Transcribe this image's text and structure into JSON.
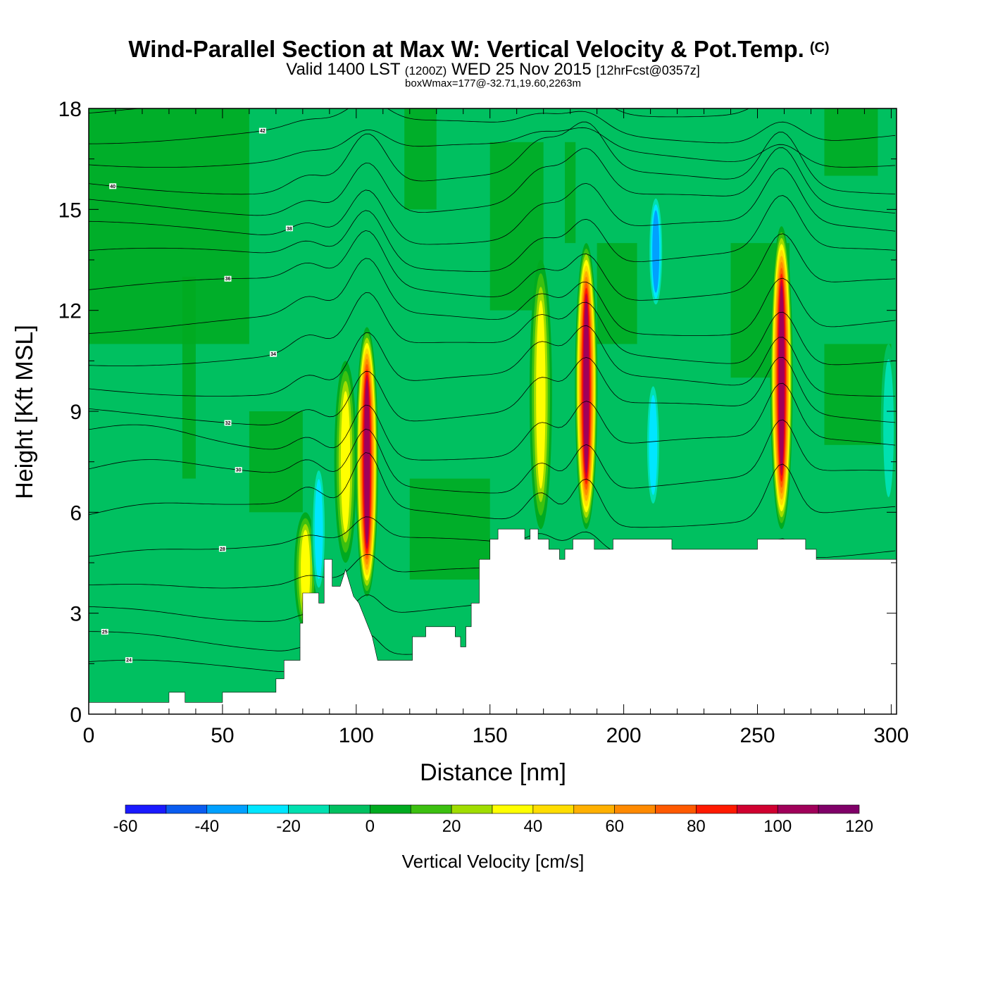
{
  "chart_data": {
    "type": "heatmap",
    "title": "Wind-Parallel Section at Max W: Vertical Velocity & Pot.Temp.",
    "title_mark": "(C)",
    "subtitle_valid": "Valid 1400 LST",
    "subtitle_utc": "(1200Z)",
    "subtitle_date": "WED 25 Nov 2015",
    "subtitle_fcst": "[12hrFcst@0357z]",
    "subtitle_box": "boxWmax=177@-32.71,19.60,2263m",
    "xlabel": "Distance [nm]",
    "ylabel": "Height [Kft MSL]",
    "xlim": [
      0,
      302
    ],
    "ylim": [
      0,
      18
    ],
    "x_ticks": [
      0,
      50,
      100,
      150,
      200,
      250,
      300
    ],
    "y_ticks": [
      0,
      3,
      6,
      9,
      12,
      15,
      18
    ],
    "colorbar": {
      "label": "Vertical Velocity [cm/s]",
      "ticks": [
        -60,
        -40,
        -20,
        0,
        20,
        40,
        60,
        80,
        100,
        120
      ],
      "bounds": [
        -60,
        120
      ],
      "step": 10,
      "colors": [
        "#1a1aff",
        "#0a5cf0",
        "#00a0ff",
        "#00e6ff",
        "#00e0b0",
        "#00c060",
        "#00aa20",
        "#3cc010",
        "#a0dd00",
        "#ffff00",
        "#ffdd00",
        "#ffb000",
        "#ff8a00",
        "#ff5a00",
        "#ff1a00",
        "#d00030",
        "#a0005a",
        "#800068"
      ]
    },
    "updraft_cores": [
      {
        "x": 104,
        "peak_cm_s": 105,
        "base_kft": 3.5,
        "top_kft": 11.5
      },
      {
        "x": 96,
        "peak_cm_s": 40,
        "base_kft": 4.5,
        "top_kft": 10.5
      },
      {
        "x": 81,
        "peak_cm_s": 35,
        "base_kft": 2.5,
        "top_kft": 6.0
      },
      {
        "x": 169,
        "peak_cm_s": 40,
        "base_kft": 5.5,
        "top_kft": 13.5
      },
      {
        "x": 186,
        "peak_cm_s": 105,
        "base_kft": 5.5,
        "top_kft": 14.0
      },
      {
        "x": 259,
        "peak_cm_s": 105,
        "base_kft": 5.5,
        "top_kft": 14.5
      }
    ],
    "downdraft_cores": [
      {
        "x": 86,
        "value_cm_s": -25,
        "base_kft": 3.5,
        "top_kft": 7.5
      },
      {
        "x": 212,
        "value_cm_s": -35,
        "base_kft": 12.0,
        "top_kft": 15.5
      },
      {
        "x": 211,
        "value_cm_s": -25,
        "base_kft": 6.0,
        "top_kft": 10.0
      },
      {
        "x": 299,
        "value_cm_s": -20,
        "base_kft": 6.0,
        "top_kft": 11.0
      }
    ],
    "terrain": [
      [
        0,
        0.35
      ],
      [
        30,
        0.35
      ],
      [
        30,
        0.65
      ],
      [
        36,
        0.65
      ],
      [
        36,
        0.35
      ],
      [
        50,
        0.35
      ],
      [
        50,
        0.65
      ],
      [
        70,
        0.65
      ],
      [
        70,
        1.05
      ],
      [
        73,
        1.05
      ],
      [
        73,
        1.6
      ],
      [
        79,
        1.6
      ],
      [
        79,
        2.7
      ],
      [
        80,
        2.7
      ],
      [
        80,
        3.6
      ],
      [
        86,
        3.6
      ],
      [
        86,
        3.3
      ],
      [
        88,
        3.3
      ],
      [
        88,
        4.6
      ],
      [
        91,
        4.6
      ],
      [
        91,
        3.8
      ],
      [
        94,
        3.8
      ],
      [
        96,
        4.3
      ],
      [
        99,
        3.5
      ],
      [
        101,
        3.3
      ],
      [
        103,
        2.9
      ],
      [
        106,
        2.3
      ],
      [
        108,
        1.6
      ],
      [
        121,
        1.6
      ],
      [
        121,
        2.3
      ],
      [
        126,
        2.3
      ],
      [
        126,
        2.6
      ],
      [
        137,
        2.6
      ],
      [
        137,
        2.3
      ],
      [
        139,
        2.3
      ],
      [
        139,
        2.0
      ],
      [
        141,
        2.0
      ],
      [
        141,
        2.6
      ],
      [
        143,
        2.6
      ],
      [
        143,
        3.3
      ],
      [
        146,
        3.3
      ],
      [
        146,
        4.6
      ],
      [
        150,
        4.6
      ],
      [
        150,
        5.2
      ],
      [
        153,
        5.2
      ],
      [
        153,
        5.5
      ],
      [
        163,
        5.5
      ],
      [
        163,
        5.2
      ],
      [
        165,
        5.2
      ],
      [
        165,
        5.5
      ],
      [
        168,
        5.5
      ],
      [
        168,
        5.2
      ],
      [
        172,
        5.2
      ],
      [
        172,
        4.9
      ],
      [
        176,
        4.9
      ],
      [
        176,
        4.6
      ],
      [
        178,
        4.6
      ],
      [
        178,
        4.9
      ],
      [
        181,
        4.9
      ],
      [
        181,
        5.2
      ],
      [
        189,
        5.2
      ],
      [
        189,
        4.9
      ],
      [
        196,
        4.9
      ],
      [
        196,
        5.2
      ],
      [
        218,
        5.2
      ],
      [
        218,
        4.9
      ],
      [
        250,
        4.9
      ],
      [
        250,
        5.2
      ],
      [
        268,
        5.2
      ],
      [
        268,
        4.9
      ],
      [
        272,
        4.9
      ],
      [
        272,
        4.6
      ],
      [
        302,
        4.6
      ]
    ],
    "theta_contours": [
      {
        "value": 24,
        "base": 1.2,
        "label_x": 15
      },
      {
        "value": 25,
        "base": 2.1,
        "label_x": 6
      },
      {
        "value": 26,
        "base": 3.1
      },
      {
        "value": 27,
        "base": 4.0
      },
      {
        "value": 28,
        "base": 4.9,
        "label_x": 50
      },
      {
        "value": 29,
        "base": 5.9
      },
      {
        "value": 30,
        "base": 6.9,
        "label_x": 56
      },
      {
        "value": 31,
        "base": 7.9
      },
      {
        "value": 32,
        "base": 8.9,
        "label_x": 52
      },
      {
        "value": 33,
        "base": 9.8
      },
      {
        "value": 34,
        "base": 10.7,
        "label_x": 69
      },
      {
        "value": 35,
        "base": 11.6
      },
      {
        "value": 36,
        "base": 12.6,
        "label_x": 52
      },
      {
        "value": 37,
        "base": 13.5
      },
      {
        "value": 38,
        "base": 14.3,
        "label_x": 75
      },
      {
        "value": 39,
        "base": 15.1
      },
      {
        "value": 40,
        "base": 15.8,
        "label_x": 9
      },
      {
        "value": 41,
        "base": 16.6
      },
      {
        "value": 42,
        "base": 17.3,
        "label_x": 65
      },
      {
        "value": 43,
        "base": 18.1
      },
      {
        "value": 44,
        "base": 18.9,
        "label_x": 150
      }
    ]
  }
}
